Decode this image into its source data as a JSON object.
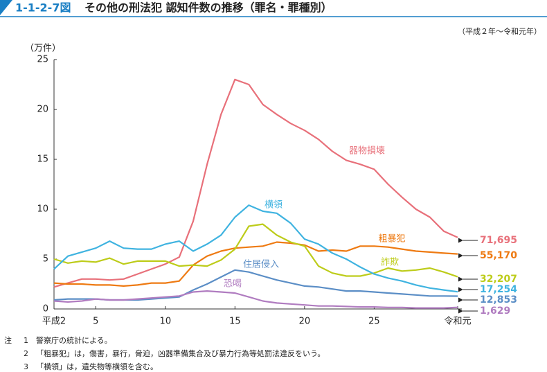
{
  "chart_data": {
    "type": "line",
    "figure_number": "1-1-2-7図",
    "title": "その他の刑法犯 認知件数の推移（罪名・罪種別）",
    "subtitle": "（平成２年～令和元年）",
    "y_label": "（万件）",
    "x": [
      2,
      3,
      4,
      5,
      6,
      7,
      8,
      9,
      10,
      11,
      12,
      13,
      14,
      15,
      16,
      17,
      18,
      19,
      20,
      21,
      22,
      23,
      24,
      25,
      26,
      27,
      28,
      29,
      30,
      31
    ],
    "xlim": [
      2,
      31
    ],
    "xticks": [
      {
        "value": 2,
        "label": "平成2"
      },
      5,
      10,
      15,
      20,
      25,
      {
        "value": 31,
        "label": "令和元"
      }
    ],
    "ylim": [
      0,
      25
    ],
    "yticks": [
      0,
      5,
      10,
      15,
      20,
      25
    ],
    "grid": false,
    "series": [
      {
        "name": "器物損壊",
        "color": "#e8707a",
        "values": [
          2.2,
          2.6,
          3.0,
          3.0,
          2.9,
          3.0,
          3.5,
          4.0,
          4.5,
          5.2,
          8.8,
          14.5,
          19.5,
          23.0,
          22.5,
          20.5,
          19.5,
          18.6,
          17.9,
          17.0,
          15.8,
          14.9,
          14.5,
          14.0,
          12.5,
          11.2,
          10.0,
          9.2,
          7.8,
          7.1695
        ],
        "value_labels": [
          null,
          null,
          null,
          null,
          null,
          null,
          null,
          null,
          null,
          null,
          null,
          null,
          null,
          null,
          null,
          null,
          null,
          null,
          null,
          null,
          null,
          null,
          null,
          null,
          null,
          null,
          null,
          null,
          null,
          "71,695"
        ]
      },
      {
        "name": "粗暴犯",
        "color": "#ee7a12",
        "values": [
          2.6,
          2.5,
          2.5,
          2.4,
          2.4,
          2.3,
          2.4,
          2.6,
          2.6,
          2.8,
          4.4,
          5.3,
          5.8,
          6.1,
          6.2,
          6.3,
          6.7,
          6.6,
          6.4,
          5.8,
          5.9,
          5.8,
          6.3,
          6.3,
          6.2,
          6.0,
          5.8,
          5.7,
          5.6,
          5.517
        ],
        "value_labels": [
          null,
          null,
          null,
          null,
          null,
          null,
          null,
          null,
          null,
          null,
          null,
          null,
          null,
          null,
          null,
          null,
          null,
          null,
          null,
          null,
          null,
          null,
          null,
          null,
          null,
          null,
          null,
          null,
          null,
          "55,170"
        ]
      },
      {
        "name": "詐欺",
        "color": "#bdcc1a",
        "values": [
          5.0,
          4.6,
          4.8,
          4.7,
          5.1,
          4.5,
          4.8,
          4.8,
          4.8,
          4.3,
          4.4,
          4.3,
          4.9,
          6.0,
          8.3,
          8.5,
          7.4,
          6.7,
          6.3,
          4.3,
          3.6,
          3.3,
          3.3,
          3.6,
          4.1,
          3.8,
          3.9,
          4.1,
          3.7,
          3.2207
        ],
        "value_labels": [
          null,
          null,
          null,
          null,
          null,
          null,
          null,
          null,
          null,
          null,
          null,
          null,
          null,
          null,
          null,
          null,
          null,
          null,
          null,
          null,
          null,
          null,
          null,
          null,
          null,
          null,
          null,
          null,
          null,
          "32,207"
        ]
      },
      {
        "name": "横領",
        "color": "#3fb3e0",
        "values": [
          4.0,
          5.3,
          5.7,
          6.1,
          6.8,
          6.1,
          6.0,
          6.0,
          6.5,
          6.8,
          5.8,
          6.5,
          7.4,
          9.2,
          10.4,
          9.8,
          9.6,
          8.6,
          7.0,
          6.5,
          5.6,
          5.0,
          4.2,
          3.5,
          3.1,
          2.8,
          2.4,
          2.1,
          1.9,
          1.7254
        ],
        "value_labels": [
          null,
          null,
          null,
          null,
          null,
          null,
          null,
          null,
          null,
          null,
          null,
          null,
          null,
          null,
          null,
          null,
          null,
          null,
          null,
          null,
          null,
          null,
          null,
          null,
          null,
          null,
          null,
          null,
          null,
          "17,254"
        ]
      },
      {
        "name": "住居侵入",
        "color": "#5b8ec6",
        "values": [
          0.9,
          1.0,
          1.0,
          1.0,
          0.9,
          0.9,
          0.9,
          1.0,
          1.1,
          1.2,
          1.9,
          2.5,
          3.2,
          3.9,
          3.7,
          3.3,
          2.9,
          2.6,
          2.3,
          2.2,
          2.0,
          1.8,
          1.8,
          1.7,
          1.6,
          1.5,
          1.4,
          1.3,
          1.3,
          1.2853
        ],
        "value_labels": [
          null,
          null,
          null,
          null,
          null,
          null,
          null,
          null,
          null,
          null,
          null,
          null,
          null,
          null,
          null,
          null,
          null,
          null,
          null,
          null,
          null,
          null,
          null,
          null,
          null,
          null,
          null,
          null,
          null,
          "12,853"
        ]
      },
      {
        "name": "恐喝",
        "color": "#b07cc0",
        "values": [
          0.8,
          0.7,
          0.8,
          1.0,
          0.9,
          0.9,
          1.0,
          1.1,
          1.2,
          1.3,
          1.7,
          1.8,
          1.7,
          1.6,
          1.2,
          0.8,
          0.6,
          0.5,
          0.4,
          0.3,
          0.3,
          0.25,
          0.2,
          0.2,
          0.15,
          0.15,
          0.1,
          0.1,
          0.1,
          0.1629
        ],
        "value_labels": [
          null,
          null,
          null,
          null,
          null,
          null,
          null,
          null,
          null,
          null,
          null,
          null,
          null,
          null,
          null,
          null,
          null,
          null,
          null,
          null,
          null,
          null,
          null,
          null,
          null,
          null,
          null,
          null,
          null,
          "1,629"
        ]
      }
    ],
    "notes_label": "注",
    "notes": [
      {
        "number": "1",
        "text": "警察庁の統計による。"
      },
      {
        "number": "2",
        "text": "「粗暴犯」は，傷害，暴行，脅迫，凶器準備集合及び暴力行為等処罰法違反をいう。"
      },
      {
        "number": "3",
        "text": "「横領」は，遺失物等横領を含む。"
      }
    ]
  }
}
